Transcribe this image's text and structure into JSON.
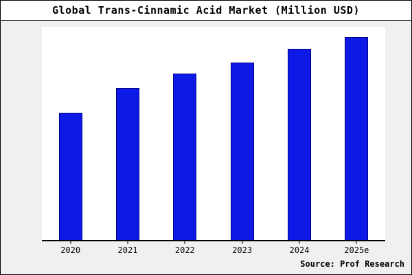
{
  "chart_data": {
    "type": "bar",
    "title": "Global Trans-Cinnamic Acid Market (Million USD)",
    "categories": [
      "2020",
      "2021",
      "2022",
      "2023",
      "2024",
      "2025e"
    ],
    "values": [
      62.5,
      75,
      82,
      87.5,
      94,
      100
    ],
    "xlabel": "",
    "ylabel": "",
    "ylim": [
      0,
      105
    ],
    "grid": false,
    "legend": false,
    "colors": {
      "bar_fill": "#0d1ae6",
      "bar_border": "#000080",
      "figure_background": "#f0f0f0",
      "plot_background": "#ffffff",
      "axis": "#000000"
    }
  },
  "source_caption": "Source: Prof Research"
}
